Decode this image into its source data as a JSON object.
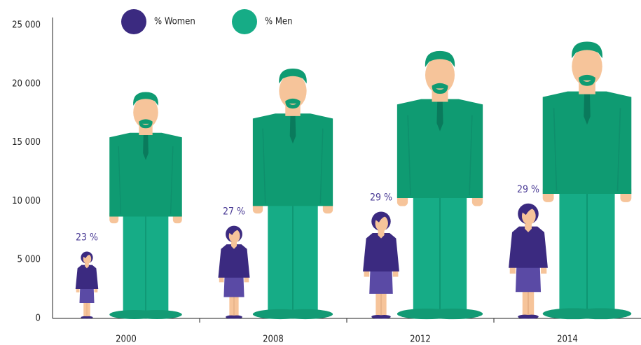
{
  "chart_data": {
    "type": "pictograph",
    "categories": [
      "2000",
      "2008",
      "2012",
      "2014"
    ],
    "series": [
      {
        "name": "% Women",
        "color": "#3b2a80",
        "values": [
          5700,
          7900,
          9100,
          9800
        ]
      },
      {
        "name": "% Men",
        "color": "#16ac86",
        "values": [
          19300,
          21300,
          22800,
          23600
        ]
      }
    ],
    "annotations": [
      "23 %",
      "27 %",
      "29 %",
      "29 %"
    ],
    "ylim": [
      0,
      25000
    ],
    "yticks": [
      0,
      {
        "value": 5000,
        "label": "5 000"
      },
      {
        "value": 10000,
        "label": "10 000"
      },
      {
        "value": 15000,
        "label": "15 000"
      },
      {
        "value": 20000,
        "label": "20 000"
      },
      {
        "value": 25000,
        "label": "25 000"
      }
    ],
    "grid": false,
    "legend": "top"
  }
}
